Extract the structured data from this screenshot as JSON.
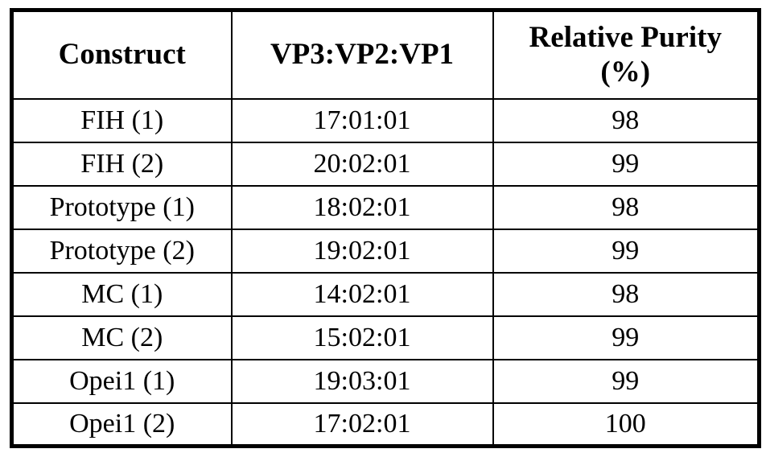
{
  "page": {
    "background_color": "#ffffff",
    "text_color": "#000000",
    "border_color": "#000000"
  },
  "table": {
    "header": {
      "construct": "Construct",
      "ratio": "VP3:VP2:VP1",
      "purity": "Relative Purity (%)"
    },
    "rows": [
      {
        "construct": "FIH (1)",
        "ratio": "17:01:01",
        "purity": "98"
      },
      {
        "construct": "FIH (2)",
        "ratio": "20:02:01",
        "purity": "99"
      },
      {
        "construct": "Prototype (1)",
        "ratio": "18:02:01",
        "purity": "98"
      },
      {
        "construct": "Prototype (2)",
        "ratio": "19:02:01",
        "purity": "99"
      },
      {
        "construct": "MC (1)",
        "ratio": "14:02:01",
        "purity": "98"
      },
      {
        "construct": "MC (2)",
        "ratio": "15:02:01",
        "purity": "99"
      },
      {
        "construct": "Opei1 (1)",
        "ratio": "19:03:01",
        "purity": "99"
      },
      {
        "construct": "Opei1 (2)",
        "ratio": "17:02:01",
        "purity": "100"
      }
    ]
  },
  "chart_data": {
    "type": "table",
    "title": "",
    "columns": [
      "Construct",
      "VP3:VP2:VP1",
      "Relative Purity (%)"
    ],
    "rows": [
      [
        "FIH (1)",
        "17:01:01",
        98
      ],
      [
        "FIH (2)",
        "20:02:01",
        99
      ],
      [
        "Prototype (1)",
        "18:02:01",
        98
      ],
      [
        "Prototype (2)",
        "19:02:01",
        99
      ],
      [
        "MC (1)",
        "14:02:01",
        98
      ],
      [
        "MC (2)",
        "15:02:01",
        99
      ],
      [
        "Opei1 (1)",
        "19:03:01",
        99
      ],
      [
        "Opei1 (2)",
        "17:02:01",
        100
      ]
    ]
  }
}
